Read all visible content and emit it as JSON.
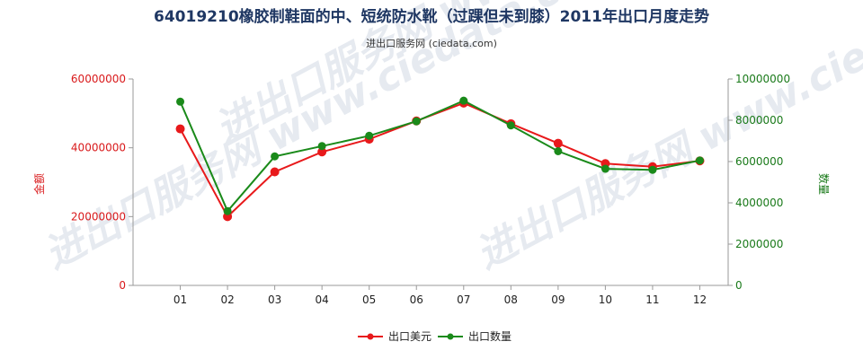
{
  "chart_data": {
    "type": "line",
    "title": "64019210橡胶制鞋面的中、短统防水靴（过踝但未到膝）2011年出口月度走势",
    "subtitle": "进出口服务网 (ciedata.com)",
    "watermark": "进出口服务网 www.ciedata.com",
    "categories": [
      "01",
      "02",
      "03",
      "04",
      "05",
      "06",
      "07",
      "08",
      "09",
      "10",
      "11",
      "12"
    ],
    "y_left": {
      "label": "金额",
      "ylim": [
        0,
        60000000
      ],
      "ticks": [
        "0",
        "20000000",
        "40000000",
        "60000000"
      ],
      "color": "#d9191b"
    },
    "y_right": {
      "label": "数量",
      "ylim": [
        0,
        10000000
      ],
      "ticks": [
        "0",
        "2000000",
        "4000000",
        "6000000",
        "8000000",
        "10000000"
      ],
      "color": "#1a7a1a"
    },
    "series": [
      {
        "name": "出口美元",
        "axis": "left",
        "color": "#e8191b",
        "values": [
          45500000,
          20000000,
          33000000,
          38800000,
          42500000,
          47800000,
          53000000,
          47000000,
          41300000,
          35400000,
          34500000,
          36200000
        ]
      },
      {
        "name": "出口数量",
        "axis": "right",
        "color": "#1a8a1a",
        "values": [
          8900000,
          3600000,
          6250000,
          6750000,
          7250000,
          7950000,
          8950000,
          7750000,
          6500000,
          5650000,
          5600000,
          6050000
        ]
      }
    ],
    "grid": false,
    "legend_position": "bottom-center"
  }
}
